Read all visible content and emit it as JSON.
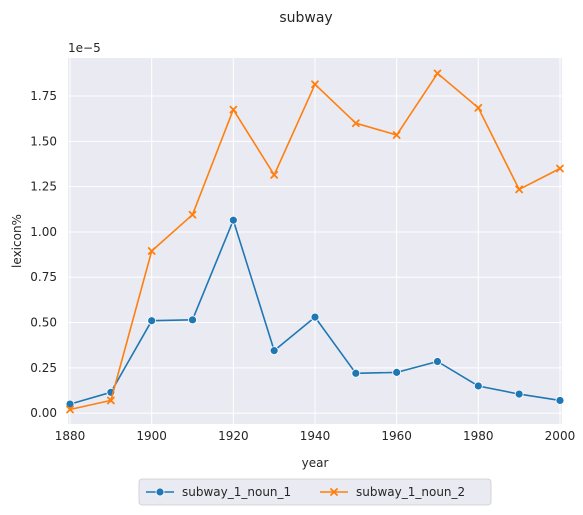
{
  "chart_data": {
    "type": "line",
    "title": "subway",
    "xlabel": "year",
    "ylabel": "lexicon%",
    "y_offset_label": "1e−5",
    "x": [
      1880,
      1890,
      1900,
      1910,
      1920,
      1930,
      1940,
      1950,
      1960,
      1970,
      1980,
      1990,
      2000
    ],
    "xlim": [
      1879.5,
      2000.5
    ],
    "ylim": [
      -0.06,
      1.96
    ],
    "x_ticks": [
      1880,
      1900,
      1920,
      1940,
      1960,
      1980,
      2000
    ],
    "y_ticks": [
      0.0,
      0.25,
      0.5,
      0.75,
      1.0,
      1.25,
      1.5,
      1.75
    ],
    "y_tick_labels": [
      "0.00",
      "0.25",
      "0.50",
      "0.75",
      "1.00",
      "1.25",
      "1.50",
      "1.75"
    ],
    "grid": true,
    "legend_position": "bottom-center",
    "series": [
      {
        "name": "subway_1_noun_1",
        "marker": "circle",
        "color": "#1f77b4",
        "values": [
          0.05,
          0.115,
          0.51,
          0.515,
          1.065,
          0.345,
          0.53,
          0.22,
          0.225,
          0.285,
          0.15,
          0.105,
          0.07
        ]
      },
      {
        "name": "subway_1_noun_2",
        "marker": "x",
        "color": "#ff7f0e",
        "values": [
          0.02,
          0.07,
          0.895,
          1.095,
          1.675,
          1.315,
          1.815,
          1.6,
          1.535,
          1.875,
          1.685,
          1.235,
          1.35
        ]
      }
    ]
  }
}
